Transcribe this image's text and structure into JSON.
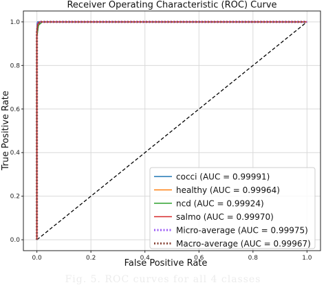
{
  "chart_data": {
    "type": "line",
    "title": "Receiver Operating Characteristic (ROC) Curve",
    "xlabel": "False Positive Rate",
    "ylabel": "True Positive Rate",
    "xlim": [
      -0.05,
      1.05
    ],
    "ylim": [
      -0.05,
      1.05
    ],
    "xticks": [
      0.0,
      0.2,
      0.4,
      0.6,
      0.8,
      1.0
    ],
    "yticks": [
      0.0,
      0.2,
      0.4,
      0.6,
      0.8,
      1.0
    ],
    "xtick_labels": [
      "0.0",
      "0.2",
      "0.4",
      "0.6",
      "0.8",
      "1.0"
    ],
    "ytick_labels": [
      "0.0",
      "0.2",
      "0.4",
      "0.6",
      "0.8",
      "1.0"
    ],
    "grid": true,
    "legend_position": "bottom-right",
    "series": [
      {
        "name": "cocci (AUC = 0.99991)",
        "color": "#1f77b4",
        "style": "solid",
        "x": [
          0,
          0,
          0.001,
          0.003,
          1.0
        ],
        "y": [
          0,
          0.96,
          0.995,
          1.0,
          1.0
        ]
      },
      {
        "name": "healthy (AUC = 0.99964)",
        "color": "#ff7f0e",
        "style": "solid",
        "x": [
          0,
          0,
          0.004,
          0.012,
          1.0
        ],
        "y": [
          0,
          0.95,
          0.99,
          1.0,
          1.0
        ]
      },
      {
        "name": "ncd (AUC = 0.99924)",
        "color": "#2ca02c",
        "style": "solid",
        "x": [
          0,
          0,
          0.006,
          0.02,
          1.0
        ],
        "y": [
          0,
          0.93,
          0.985,
          1.0,
          1.0
        ]
      },
      {
        "name": "salmo (AUC = 0.99970)",
        "color": "#d62728",
        "style": "solid",
        "x": [
          0,
          0,
          0.003,
          0.01,
          1.0
        ],
        "y": [
          0,
          0.96,
          0.992,
          1.0,
          1.0
        ]
      },
      {
        "name": "Micro-average (AUC = 0.99975)",
        "color": "#9b59f6",
        "style": "dotted",
        "x": [
          0,
          0,
          0.003,
          0.01,
          1.0
        ],
        "y": [
          0,
          0.95,
          0.993,
          1.0,
          1.0
        ]
      },
      {
        "name": "Macro-average (AUC = 0.99967)",
        "color": "#8c4a3c",
        "style": "dotted",
        "x": [
          0,
          0,
          0.004,
          0.012,
          1.0
        ],
        "y": [
          0,
          0.95,
          0.99,
          1.0,
          1.0
        ]
      }
    ],
    "reference_line": {
      "x": [
        0,
        1
      ],
      "y": [
        0,
        1
      ],
      "color": "#000000",
      "style": "dashed"
    }
  },
  "caption": "Fig. 5. ROC curves for all 4 classes"
}
